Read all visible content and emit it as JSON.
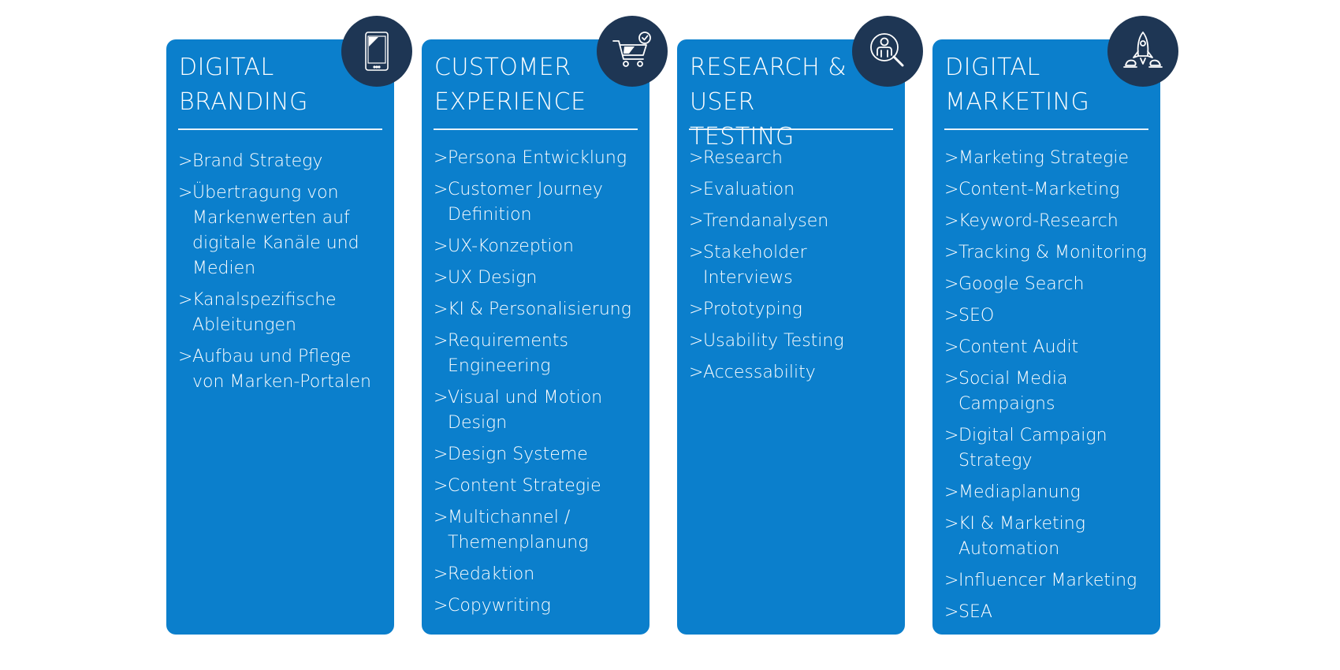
{
  "colors": {
    "card": "#0b7fcc",
    "badge": "#1e3654",
    "text": "#ffffff"
  },
  "chevron": ">",
  "cards": [
    {
      "title": "DIGITAL\nBRANDING",
      "icon": "tablet-icon",
      "items": [
        "Brand Strategy",
        "Übertragung von\nMarkenwerten auf\ndigitale Kanäle und\nMedien",
        "Kanalspezifische\nAbleitungen",
        "Aufbau und Pflege\nvon Marken-Portalen"
      ]
    },
    {
      "title": "CUSTOMER\nEXPERIENCE",
      "icon": "shopping-cart-check-icon",
      "items": [
        "Persona Entwicklung",
        "Customer Journey\nDefinition",
        "UX-Konzeption",
        "UX Design",
        "KI & Personalisierung",
        "Requirements\nEngineering",
        "Visual und Motion\nDesign",
        "Design Systeme",
        "Content Strategie",
        "Multichannel /\nThemenplanung",
        "Redaktion",
        "Copywriting"
      ]
    },
    {
      "title": "RESEARCH &\nUSER TESTING",
      "icon": "user-magnifier-icon",
      "items": [
        "Research",
        "Evaluation",
        "Trendanalysen",
        "Stakeholder\nInterviews",
        "Prototyping",
        "Usability Testing",
        "Accessability"
      ]
    },
    {
      "title": "DIGITAL\nMARKETING",
      "icon": "rocket-icon",
      "items": [
        "Marketing Strategie",
        "Content-Marketing",
        "Keyword-Research",
        "Tracking & Monitoring",
        "Google Search",
        "SEO",
        "Content Audit",
        "Social Media\nCampaigns",
        "Digital Campaign\nStrategy",
        "Mediaplanung",
        "KI & Marketing\nAutomation",
        "Influencer Marketing",
        "SEA"
      ]
    }
  ]
}
